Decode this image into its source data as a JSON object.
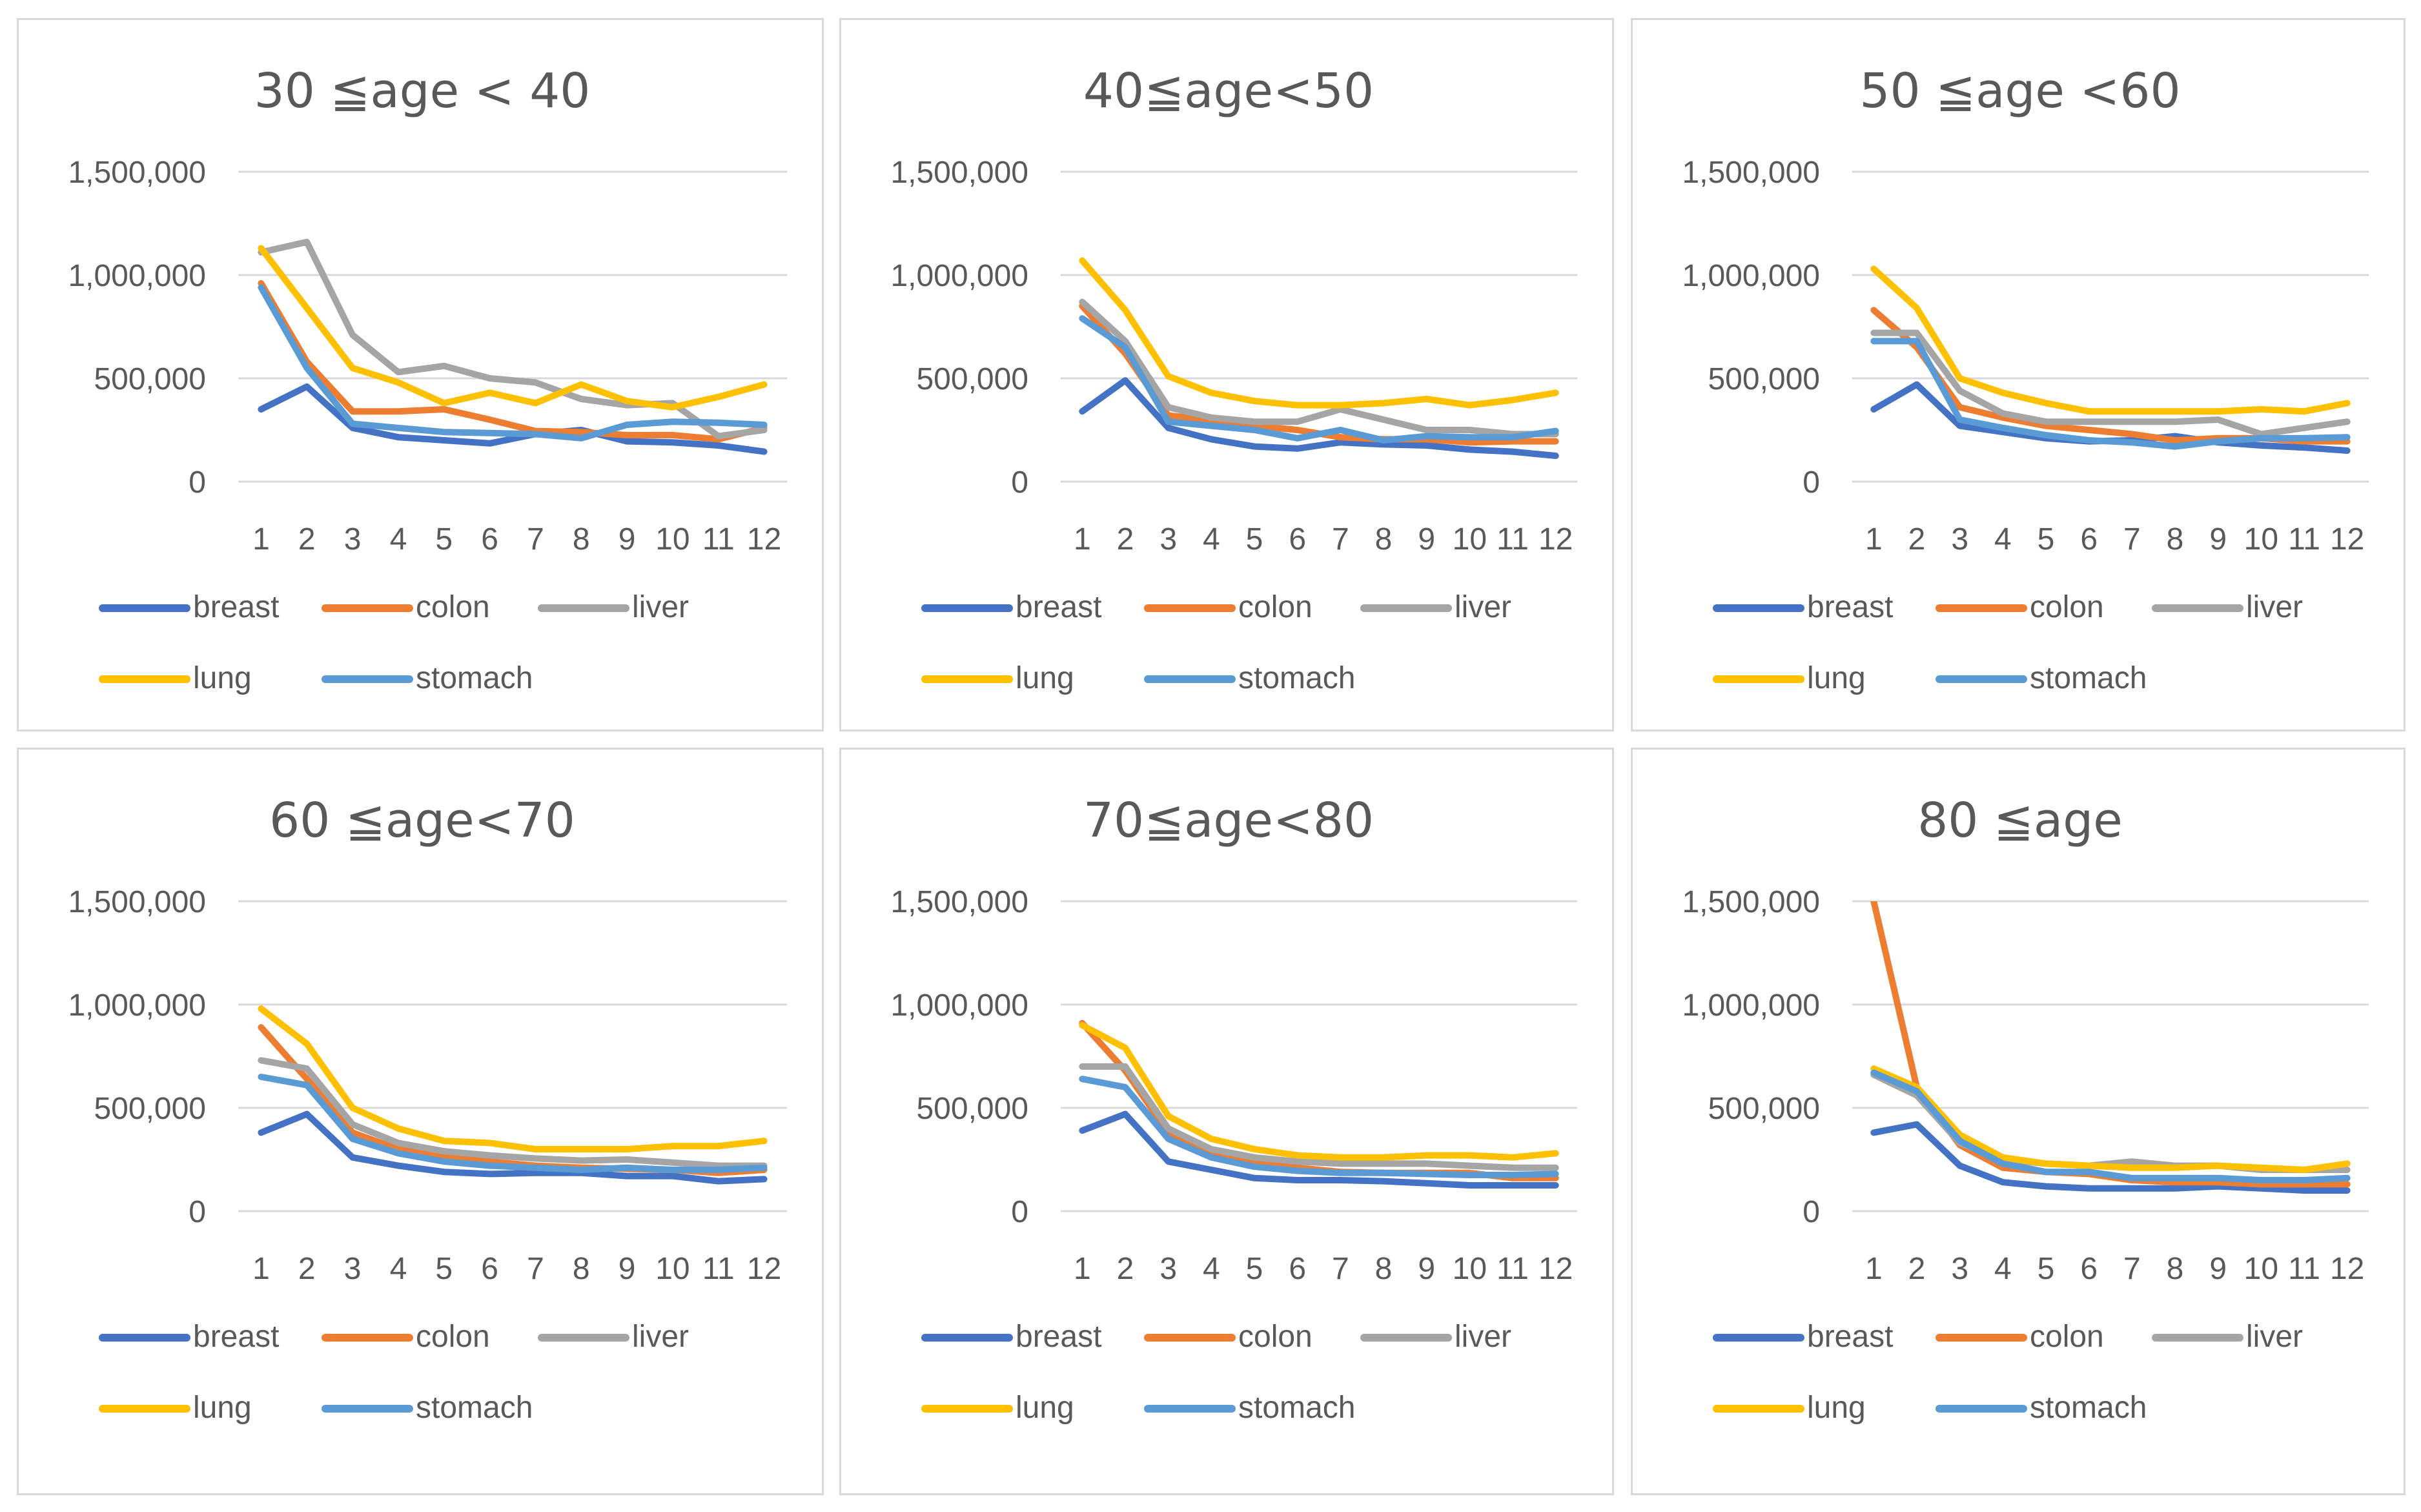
{
  "figure": {
    "background": "#ffffff",
    "border_color": "#d9d9d9"
  },
  "series_colors": {
    "breast": "#4472c4",
    "colon": "#ed7d31",
    "liver": "#a5a5a5",
    "lung": "#ffc000",
    "stomach": "#5b9bd5"
  },
  "chart_data": [
    {
      "type": "line",
      "title": "30 ≦age < 40",
      "categories": [
        "1",
        "2",
        "3",
        "4",
        "5",
        "6",
        "7",
        "8",
        "9",
        "10",
        "11",
        "12"
      ],
      "y_ticks": [
        "0",
        "500,000",
        "1,000,000",
        "1,500,000"
      ],
      "ylim": [
        0,
        1500000
      ],
      "legend": "bottom",
      "series": [
        {
          "name": "breast",
          "values": [
            350000,
            460000,
            260000,
            215000,
            200000,
            185000,
            230000,
            250000,
            195000,
            190000,
            175000,
            145000
          ]
        },
        {
          "name": "colon",
          "values": [
            960000,
            580000,
            340000,
            340000,
            350000,
            300000,
            245000,
            240000,
            225000,
            225000,
            205000,
            260000
          ]
        },
        {
          "name": "liver",
          "values": [
            1110000,
            1160000,
            710000,
            530000,
            560000,
            500000,
            480000,
            400000,
            370000,
            380000,
            220000,
            250000
          ]
        },
        {
          "name": "lung",
          "values": [
            1130000,
            840000,
            550000,
            480000,
            380000,
            430000,
            380000,
            470000,
            390000,
            360000,
            410000,
            470000
          ]
        },
        {
          "name": "stomach",
          "values": [
            940000,
            550000,
            280000,
            260000,
            240000,
            235000,
            230000,
            210000,
            275000,
            290000,
            285000,
            275000
          ]
        }
      ]
    },
    {
      "type": "line",
      "title": "40≦age<50",
      "categories": [
        "1",
        "2",
        "3",
        "4",
        "5",
        "6",
        "7",
        "8",
        "9",
        "10",
        "11",
        "12"
      ],
      "y_ticks": [
        "0",
        "500,000",
        "1,000,000",
        "1,500,000"
      ],
      "ylim": [
        0,
        1500000
      ],
      "legend": "bottom",
      "series": [
        {
          "name": "breast",
          "values": [
            340000,
            490000,
            260000,
            205000,
            170000,
            160000,
            190000,
            180000,
            175000,
            155000,
            145000,
            125000
          ]
        },
        {
          "name": "colon",
          "values": [
            850000,
            620000,
            320000,
            300000,
            270000,
            250000,
            215000,
            205000,
            205000,
            190000,
            195000,
            195000
          ]
        },
        {
          "name": "liver",
          "values": [
            870000,
            680000,
            360000,
            310000,
            290000,
            290000,
            350000,
            300000,
            250000,
            250000,
            230000,
            230000
          ]
        },
        {
          "name": "lung",
          "values": [
            1070000,
            830000,
            510000,
            430000,
            390000,
            370000,
            370000,
            380000,
            400000,
            370000,
            395000,
            430000
          ]
        },
        {
          "name": "stomach",
          "values": [
            790000,
            650000,
            290000,
            270000,
            250000,
            210000,
            250000,
            200000,
            220000,
            215000,
            215000,
            245000
          ]
        }
      ]
    },
    {
      "type": "line",
      "title": "50 ≦age <60",
      "categories": [
        "1",
        "2",
        "3",
        "4",
        "5",
        "6",
        "7",
        "8",
        "9",
        "10",
        "11",
        "12"
      ],
      "y_ticks": [
        "0",
        "500,000",
        "1,000,000",
        "1,500,000"
      ],
      "ylim": [
        0,
        1500000
      ],
      "legend": "bottom",
      "series": [
        {
          "name": "breast",
          "values": [
            350000,
            470000,
            270000,
            240000,
            210000,
            195000,
            200000,
            220000,
            190000,
            175000,
            165000,
            150000
          ]
        },
        {
          "name": "colon",
          "values": [
            830000,
            650000,
            360000,
            310000,
            270000,
            250000,
            230000,
            200000,
            210000,
            210000,
            195000,
            195000
          ]
        },
        {
          "name": "liver",
          "values": [
            720000,
            720000,
            440000,
            330000,
            290000,
            290000,
            290000,
            290000,
            300000,
            230000,
            260000,
            290000
          ]
        },
        {
          "name": "lung",
          "values": [
            1030000,
            840000,
            500000,
            430000,
            380000,
            340000,
            340000,
            340000,
            340000,
            350000,
            340000,
            380000
          ]
        },
        {
          "name": "stomach",
          "values": [
            680000,
            680000,
            300000,
            260000,
            225000,
            200000,
            190000,
            170000,
            195000,
            210000,
            210000,
            215000
          ]
        }
      ]
    },
    {
      "type": "line",
      "title": "60 ≦age<70",
      "categories": [
        "1",
        "2",
        "3",
        "4",
        "5",
        "6",
        "7",
        "8",
        "9",
        "10",
        "11",
        "12"
      ],
      "y_ticks": [
        "0",
        "500,000",
        "1,000,000",
        "1,500,000"
      ],
      "ylim": [
        0,
        1500000
      ],
      "legend": "bottom",
      "series": [
        {
          "name": "breast",
          "values": [
            380000,
            470000,
            260000,
            220000,
            190000,
            180000,
            185000,
            185000,
            170000,
            170000,
            145000,
            155000
          ]
        },
        {
          "name": "colon",
          "values": [
            890000,
            640000,
            380000,
            300000,
            260000,
            240000,
            220000,
            210000,
            205000,
            200000,
            185000,
            200000
          ]
        },
        {
          "name": "liver",
          "values": [
            730000,
            690000,
            420000,
            330000,
            290000,
            270000,
            255000,
            245000,
            250000,
            235000,
            220000,
            220000
          ]
        },
        {
          "name": "lung",
          "values": [
            980000,
            810000,
            500000,
            400000,
            340000,
            330000,
            300000,
            300000,
            300000,
            315000,
            315000,
            340000
          ]
        },
        {
          "name": "stomach",
          "values": [
            650000,
            610000,
            350000,
            280000,
            240000,
            220000,
            210000,
            200000,
            210000,
            200000,
            200000,
            210000
          ]
        }
      ]
    },
    {
      "type": "line",
      "title": "70≦age<80",
      "categories": [
        "1",
        "2",
        "3",
        "4",
        "5",
        "6",
        "7",
        "8",
        "9",
        "10",
        "11",
        "12"
      ],
      "y_ticks": [
        "0",
        "500,000",
        "1,000,000",
        "1,500,000"
      ],
      "ylim": [
        0,
        1500000
      ],
      "legend": "bottom",
      "series": [
        {
          "name": "breast",
          "values": [
            390000,
            470000,
            240000,
            200000,
            160000,
            150000,
            150000,
            145000,
            135000,
            125000,
            125000,
            125000
          ]
        },
        {
          "name": "colon",
          "values": [
            910000,
            680000,
            380000,
            280000,
            240000,
            210000,
            190000,
            185000,
            185000,
            185000,
            160000,
            160000
          ]
        },
        {
          "name": "liver",
          "values": [
            700000,
            700000,
            400000,
            300000,
            260000,
            240000,
            230000,
            230000,
            230000,
            220000,
            210000,
            210000
          ]
        },
        {
          "name": "lung",
          "values": [
            900000,
            790000,
            460000,
            350000,
            300000,
            270000,
            260000,
            260000,
            270000,
            270000,
            260000,
            280000
          ]
        },
        {
          "name": "stomach",
          "values": [
            640000,
            600000,
            350000,
            260000,
            215000,
            195000,
            185000,
            185000,
            180000,
            175000,
            175000,
            180000
          ]
        }
      ]
    },
    {
      "type": "line",
      "title": "80 ≦age",
      "categories": [
        "1",
        "2",
        "3",
        "4",
        "5",
        "6",
        "7",
        "8",
        "9",
        "10",
        "11",
        "12"
      ],
      "y_ticks": [
        "0",
        "500,000",
        "1,000,000",
        "1,500,000"
      ],
      "ylim": [
        0,
        1500000
      ],
      "legend": "bottom",
      "series": [
        {
          "name": "breast",
          "values": [
            380000,
            420000,
            220000,
            140000,
            120000,
            110000,
            110000,
            110000,
            120000,
            110000,
            100000,
            100000
          ]
        },
        {
          "name": "colon",
          "values": [
            1500000,
            600000,
            320000,
            210000,
            190000,
            180000,
            150000,
            140000,
            140000,
            130000,
            130000,
            130000
          ]
        },
        {
          "name": "liver",
          "values": [
            660000,
            560000,
            330000,
            250000,
            230000,
            220000,
            240000,
            220000,
            220000,
            200000,
            200000,
            200000
          ]
        },
        {
          "name": "lung",
          "values": [
            690000,
            600000,
            370000,
            260000,
            230000,
            220000,
            210000,
            210000,
            220000,
            210000,
            200000,
            230000
          ]
        },
        {
          "name": "stomach",
          "values": [
            670000,
            580000,
            340000,
            230000,
            190000,
            190000,
            160000,
            160000,
            160000,
            150000,
            150000,
            160000
          ]
        }
      ]
    }
  ]
}
